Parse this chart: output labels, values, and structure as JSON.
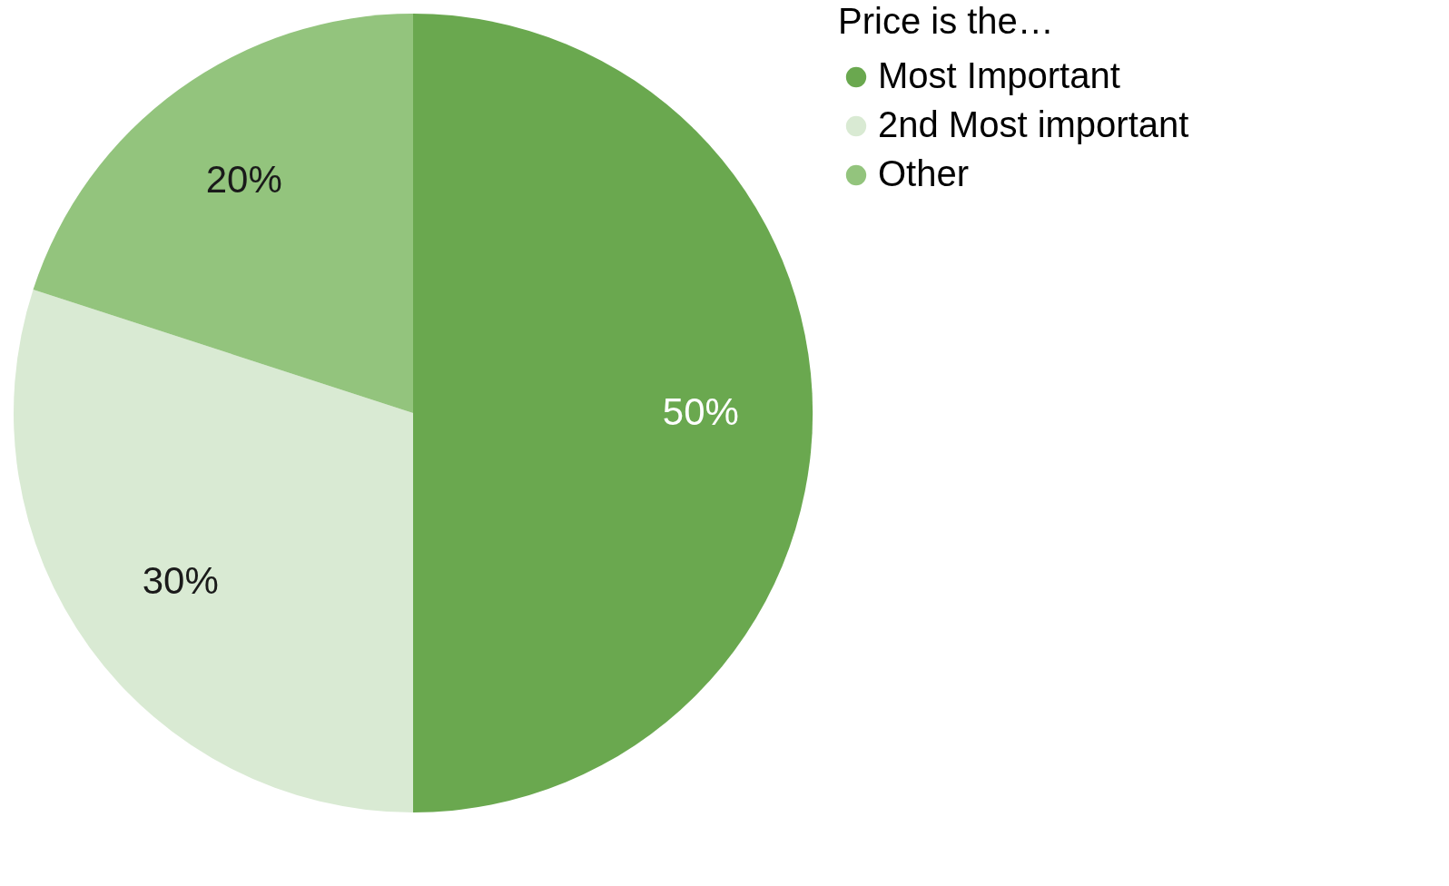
{
  "chart_data": {
    "type": "pie",
    "legend_title": "Price is the…",
    "categories": [
      "Most Important",
      "2nd Most important",
      "Other"
    ],
    "values": [
      50,
      30,
      20
    ],
    "value_labels": [
      "50%",
      "30%",
      "20%"
    ],
    "colors": [
      "#6aa84f",
      "#d9ead3",
      "#93c47d"
    ],
    "legend": "right"
  }
}
